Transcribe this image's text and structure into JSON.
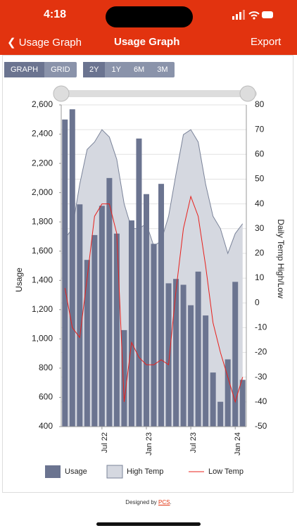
{
  "status_bar": {
    "time": "4:18"
  },
  "nav": {
    "back": "Usage Graph",
    "title": "Usage Graph",
    "action": "Export"
  },
  "view_toggle": [
    "GRAPH",
    "GRID"
  ],
  "range_toggle": [
    "2Y",
    "1Y",
    "6M",
    "3M"
  ],
  "chart_data": {
    "type": "combo",
    "y_label": "Usage",
    "y2_label": "Daily Temp High/Low",
    "categories": [
      null,
      null,
      null,
      null,
      null,
      "Jul 22",
      null,
      null,
      null,
      null,
      null,
      "Jan 23",
      null,
      null,
      null,
      null,
      null,
      "Jul 23",
      null,
      null,
      null,
      null,
      null,
      "Jan 24",
      null
    ],
    "series": [
      {
        "name": "Usage",
        "type": "bar",
        "color": "#6b7490",
        "values": [
          2500,
          2570,
          1920,
          1540,
          1710,
          1910,
          2100,
          1720,
          1060,
          1810,
          2370,
          1990,
          1650,
          2060,
          1380,
          1410,
          1370,
          1230,
          1460,
          1160,
          770,
          570,
          860,
          1390,
          720
        ]
      },
      {
        "name": "High Temp",
        "type": "area",
        "axis": "y2",
        "color": "#7a8399",
        "values": [
          26,
          30,
          48,
          62,
          65,
          70,
          67,
          58,
          40,
          30,
          30,
          32,
          23,
          25,
          35,
          52,
          68,
          70,
          65,
          48,
          35,
          30,
          20,
          28,
          32
        ]
      },
      {
        "name": "Low Temp",
        "type": "line",
        "axis": "y2",
        "color": "#e8201c",
        "values": [
          6,
          -10,
          -14,
          10,
          35,
          40,
          40,
          28,
          -40,
          -16,
          -22,
          -25,
          -25,
          -23,
          -25,
          5,
          30,
          43,
          35,
          15,
          -8,
          -20,
          -30,
          -40,
          -30
        ]
      }
    ],
    "ylim": [
      400,
      2600
    ],
    "yticks": [
      400,
      600,
      800,
      {
        "value": 1000,
        "label": "1,000"
      },
      {
        "value": 1200,
        "label": "1,200"
      },
      {
        "value": 1400,
        "label": "1,400"
      },
      {
        "value": 1600,
        "label": "1,600"
      },
      {
        "value": 1800,
        "label": "1,800"
      },
      {
        "value": 2000,
        "label": "2,000"
      },
      {
        "value": 2200,
        "label": "2,200"
      },
      {
        "value": 2400,
        "label": "2,400"
      },
      {
        "value": 2600,
        "label": "2,600"
      }
    ],
    "y2lim": [
      -50,
      80
    ],
    "y2ticks": [
      -50,
      -40,
      -30,
      -20,
      -10,
      0,
      10,
      20,
      30,
      40,
      50,
      60,
      70,
      80
    ],
    "grid": true
  },
  "footer": {
    "prefix": "Designed by",
    "link": "PCS",
    "suffix": "."
  }
}
